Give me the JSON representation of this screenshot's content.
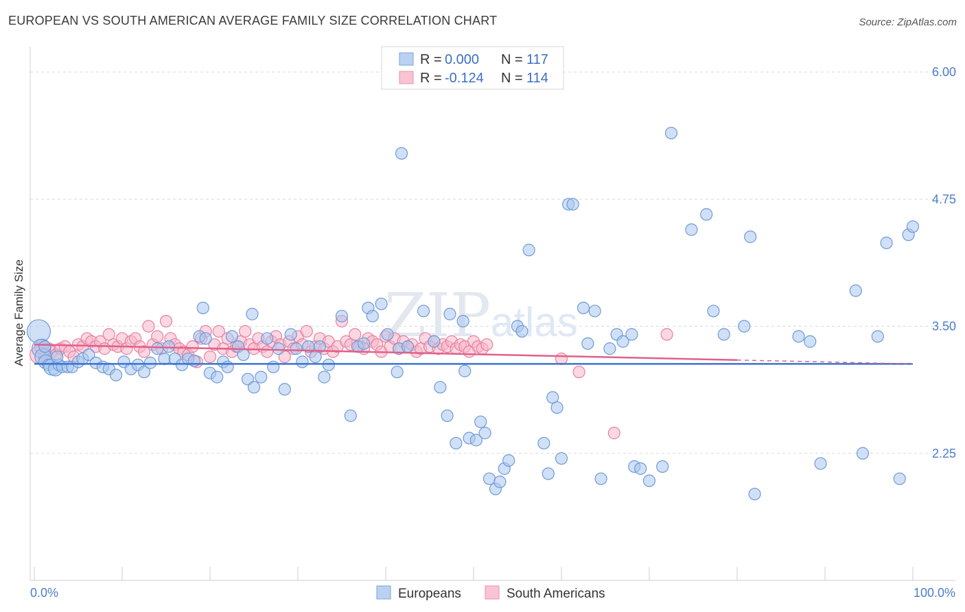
{
  "title": "EUROPEAN VS SOUTH AMERICAN AVERAGE FAMILY SIZE CORRELATION CHART",
  "source": "Source: ZipAtlas.com",
  "watermark": {
    "zip": "ZIP",
    "atlas": "atlas"
  },
  "legend": {
    "rows": [
      {
        "r_label": "R =",
        "r_value": "0.000",
        "n_label": "N =",
        "n_value": "117"
      },
      {
        "r_label": "R =",
        "r_value": "-0.124",
        "n_label": "N =",
        "n_value": "114"
      }
    ]
  },
  "bottom_legend": [
    "Europeans",
    "South Americans"
  ],
  "colors": {
    "blue_fill": "#a9c6ee",
    "blue_stroke": "#6e9ad8",
    "blue_line": "#3a74d0",
    "pink_fill": "#f5b6c8",
    "pink_stroke": "#e97fa0",
    "pink_line": "#e0608a",
    "tick_text": "#4a7ec9",
    "grid": "#d9d9d9"
  },
  "chart_data": {
    "type": "scatter",
    "xlabel": "",
    "ylabel": "Average Family Size",
    "xlim": [
      0,
      100
    ],
    "ylim": [
      1.0,
      6.25
    ],
    "x_tick_labels": [
      "0.0%",
      "100.0%"
    ],
    "y_ticks": [
      2.25,
      3.5,
      4.75,
      6.0
    ],
    "y_tick_labels": [
      "2.25",
      "3.50",
      "4.75",
      "6.00"
    ],
    "grid": true,
    "series": [
      {
        "name": "Europeans",
        "r": 0.0,
        "n": 117,
        "trend": {
          "x0": 0,
          "y0": 3.13,
          "x1": 100,
          "y1": 3.13
        },
        "points": [
          [
            0.5,
            3.45,
            2
          ],
          [
            0.8,
            3.28,
            1.6
          ],
          [
            1.0,
            3.2,
            1.4
          ],
          [
            1.3,
            3.15,
            1.2
          ],
          [
            1.6,
            3.12,
            1
          ],
          [
            2.0,
            3.1,
            1.4
          ],
          [
            2.4,
            3.08,
            1.2
          ],
          [
            2.8,
            3.12,
            1
          ],
          [
            3.2,
            3.1,
            1
          ],
          [
            3.8,
            3.1,
            1
          ],
          [
            4.3,
            3.1,
            1
          ],
          [
            5.0,
            3.15,
            1
          ],
          [
            5.5,
            3.18,
            1
          ],
          [
            6.2,
            3.22,
            1
          ],
          [
            7.0,
            3.14,
            1
          ],
          [
            7.8,
            3.1,
            1
          ],
          [
            8.5,
            3.08,
            1
          ],
          [
            9.3,
            3.02,
            1
          ],
          [
            10.2,
            3.15,
            1
          ],
          [
            11.0,
            3.08,
            1
          ],
          [
            11.8,
            3.12,
            1
          ],
          [
            12.5,
            3.05,
            1
          ],
          [
            13.2,
            3.14,
            1
          ],
          [
            14.0,
            3.28,
            1
          ],
          [
            14.8,
            3.18,
            1
          ],
          [
            15.3,
            3.3,
            1
          ],
          [
            16.0,
            3.18,
            1
          ],
          [
            16.8,
            3.12,
            1
          ],
          [
            17.5,
            3.18,
            1
          ],
          [
            18.2,
            3.16,
            1
          ],
          [
            18.8,
            3.4,
            1
          ],
          [
            19.5,
            3.38,
            1
          ],
          [
            19.2,
            3.68,
            1
          ],
          [
            20.0,
            3.04,
            1
          ],
          [
            20.8,
            3.0,
            1
          ],
          [
            21.5,
            3.15,
            1
          ],
          [
            22.0,
            3.1,
            1
          ],
          [
            22.5,
            3.4,
            1
          ],
          [
            23.2,
            3.3,
            1
          ],
          [
            23.8,
            3.22,
            1
          ],
          [
            24.3,
            2.98,
            1
          ],
          [
            25.0,
            2.9,
            1
          ],
          [
            24.8,
            3.62,
            1
          ],
          [
            25.8,
            3.0,
            1
          ],
          [
            26.5,
            3.38,
            1
          ],
          [
            27.2,
            3.1,
            1
          ],
          [
            27.8,
            3.28,
            1
          ],
          [
            28.5,
            2.88,
            1
          ],
          [
            29.2,
            3.42,
            1
          ],
          [
            29.8,
            3.28,
            1
          ],
          [
            30.5,
            3.15,
            1
          ],
          [
            31.2,
            3.3,
            1
          ],
          [
            32.0,
            3.2,
            1
          ],
          [
            32.5,
            3.3,
            1
          ],
          [
            33.0,
            3.0,
            1
          ],
          [
            33.5,
            3.12,
            1
          ],
          [
            35.0,
            3.6,
            1
          ],
          [
            36.0,
            2.62,
            1
          ],
          [
            36.8,
            3.3,
            1
          ],
          [
            37.5,
            3.33,
            1
          ],
          [
            38.0,
            3.68,
            1
          ],
          [
            38.5,
            3.6,
            1
          ],
          [
            39.5,
            3.72,
            1
          ],
          [
            40.2,
            3.42,
            1
          ],
          [
            41.3,
            3.05,
            1
          ],
          [
            41.5,
            3.28,
            1
          ],
          [
            41.8,
            5.2,
            1
          ],
          [
            42.5,
            3.3,
            1
          ],
          [
            44.3,
            3.65,
            1
          ],
          [
            45.5,
            3.35,
            1
          ],
          [
            46.2,
            2.9,
            1
          ],
          [
            47.0,
            2.62,
            1
          ],
          [
            47.3,
            3.62,
            1
          ],
          [
            48.0,
            2.35,
            1
          ],
          [
            48.8,
            3.55,
            1
          ],
          [
            49.0,
            3.06,
            1
          ],
          [
            49.5,
            2.4,
            1
          ],
          [
            50.3,
            2.38,
            1
          ],
          [
            50.8,
            2.56,
            1
          ],
          [
            51.3,
            2.45,
            1
          ],
          [
            51.8,
            2.0,
            1
          ],
          [
            52.5,
            1.9,
            1
          ],
          [
            53.0,
            1.97,
            1
          ],
          [
            53.5,
            2.1,
            1
          ],
          [
            54.0,
            2.18,
            1
          ],
          [
            55.0,
            3.5,
            1
          ],
          [
            55.5,
            3.45,
            1
          ],
          [
            56.3,
            4.25,
            1
          ],
          [
            58.0,
            2.35,
            1
          ],
          [
            58.5,
            2.05,
            1
          ],
          [
            59.0,
            2.8,
            1
          ],
          [
            59.5,
            2.7,
            1
          ],
          [
            60.0,
            2.2,
            1
          ],
          [
            60.8,
            4.7,
            1
          ],
          [
            61.3,
            4.7,
            1
          ],
          [
            62.5,
            3.68,
            1
          ],
          [
            63.0,
            3.33,
            1
          ],
          [
            63.8,
            3.65,
            1
          ],
          [
            64.5,
            2.0,
            1
          ],
          [
            65.5,
            3.28,
            1
          ],
          [
            66.3,
            3.42,
            1
          ],
          [
            67.0,
            3.35,
            1
          ],
          [
            68.0,
            3.42,
            1
          ],
          [
            68.3,
            2.12,
            1
          ],
          [
            69.0,
            2.1,
            1
          ],
          [
            70.0,
            1.98,
            1
          ],
          [
            71.5,
            2.12,
            1
          ],
          [
            72.5,
            5.4,
            1
          ],
          [
            74.8,
            4.45,
            1
          ],
          [
            76.5,
            4.6,
            1
          ],
          [
            77.3,
            3.65,
            1
          ],
          [
            78.5,
            3.42,
            1
          ],
          [
            80.8,
            3.5,
            1
          ],
          [
            81.5,
            4.38,
            1
          ],
          [
            82.0,
            1.85,
            1
          ],
          [
            87.0,
            3.4,
            1
          ],
          [
            88.3,
            3.35,
            1
          ],
          [
            89.5,
            2.15,
            1
          ],
          [
            93.5,
            3.85,
            1
          ],
          [
            94.3,
            2.25,
            1
          ],
          [
            96.0,
            3.4,
            1
          ],
          [
            97.0,
            4.32,
            1
          ],
          [
            98.5,
            2.0,
            1
          ],
          [
            99.5,
            4.4,
            1
          ],
          [
            100.0,
            4.48,
            1
          ],
          [
            1.2,
            3.3,
            1
          ],
          [
            2.6,
            3.2,
            1
          ]
        ]
      },
      {
        "name": "South Americans",
        "r": -0.124,
        "n": 114,
        "trend": {
          "x0": 0,
          "y0": 3.32,
          "x1": 100,
          "y1": 3.13
        },
        "points": [
          [
            0.5,
            3.22,
            1.5
          ],
          [
            0.9,
            3.3,
            1.3
          ],
          [
            1.2,
            3.2,
            1.1
          ],
          [
            1.6,
            3.28,
            1
          ],
          [
            2.0,
            3.25,
            1
          ],
          [
            2.5,
            3.22,
            1
          ],
          [
            3.0,
            3.28,
            1
          ],
          [
            3.5,
            3.3,
            1
          ],
          [
            4.0,
            3.25,
            1
          ],
          [
            4.5,
            3.2,
            1
          ],
          [
            5.0,
            3.32,
            1
          ],
          [
            5.5,
            3.3,
            1
          ],
          [
            6.0,
            3.38,
            1
          ],
          [
            6.5,
            3.35,
            1
          ],
          [
            7.0,
            3.3,
            1
          ],
          [
            7.5,
            3.35,
            1
          ],
          [
            8.0,
            3.28,
            1
          ],
          [
            8.5,
            3.42,
            1
          ],
          [
            9.0,
            3.32,
            1
          ],
          [
            9.5,
            3.3,
            1
          ],
          [
            10.0,
            3.38,
            1
          ],
          [
            10.5,
            3.28,
            1
          ],
          [
            11.0,
            3.35,
            1
          ],
          [
            11.5,
            3.38,
            1
          ],
          [
            12.0,
            3.3,
            1
          ],
          [
            12.5,
            3.25,
            1
          ],
          [
            13.0,
            3.5,
            1
          ],
          [
            13.5,
            3.32,
            1
          ],
          [
            14.0,
            3.4,
            1
          ],
          [
            14.5,
            3.28,
            1
          ],
          [
            15.0,
            3.55,
            1
          ],
          [
            15.5,
            3.38,
            1
          ],
          [
            16.0,
            3.32,
            1
          ],
          [
            16.5,
            3.28,
            1
          ],
          [
            17.0,
            3.25,
            1
          ],
          [
            17.5,
            3.22,
            1
          ],
          [
            18.0,
            3.3,
            1
          ],
          [
            18.5,
            3.15,
            1
          ],
          [
            19.0,
            3.38,
            1
          ],
          [
            19.5,
            3.45,
            1
          ],
          [
            20.0,
            3.2,
            1
          ],
          [
            20.5,
            3.32,
            1
          ],
          [
            21.0,
            3.45,
            1
          ],
          [
            21.5,
            3.28,
            1
          ],
          [
            22.0,
            3.38,
            1
          ],
          [
            22.5,
            3.25,
            1
          ],
          [
            23.0,
            3.3,
            1
          ],
          [
            23.5,
            3.35,
            1
          ],
          [
            24.0,
            3.45,
            1
          ],
          [
            24.5,
            3.32,
            1
          ],
          [
            25.0,
            3.28,
            1
          ],
          [
            25.5,
            3.38,
            1
          ],
          [
            26.0,
            3.3,
            1
          ],
          [
            26.5,
            3.25,
            1
          ],
          [
            27.0,
            3.35,
            1
          ],
          [
            27.5,
            3.4,
            1
          ],
          [
            28.0,
            3.32,
            1
          ],
          [
            28.5,
            3.2,
            1
          ],
          [
            29.0,
            3.35,
            1
          ],
          [
            29.5,
            3.28,
            1
          ],
          [
            30.0,
            3.4,
            1
          ],
          [
            30.5,
            3.32,
            1
          ],
          [
            31.0,
            3.45,
            1
          ],
          [
            31.5,
            3.25,
            1
          ],
          [
            32.0,
            3.3,
            1
          ],
          [
            32.5,
            3.38,
            1
          ],
          [
            33.0,
            3.28,
            1
          ],
          [
            33.5,
            3.35,
            1
          ],
          [
            34.0,
            3.25,
            1
          ],
          [
            34.5,
            3.3,
            1
          ],
          [
            35.0,
            3.55,
            1
          ],
          [
            35.5,
            3.35,
            1
          ],
          [
            36.0,
            3.32,
            1
          ],
          [
            36.5,
            3.42,
            1
          ],
          [
            37.0,
            3.3,
            1
          ],
          [
            37.5,
            3.28,
            1
          ],
          [
            38.0,
            3.38,
            1
          ],
          [
            38.5,
            3.35,
            1
          ],
          [
            39.0,
            3.32,
            1
          ],
          [
            39.5,
            3.25,
            1
          ],
          [
            40.0,
            3.4,
            1
          ],
          [
            40.5,
            3.3,
            1
          ],
          [
            41.0,
            3.38,
            1
          ],
          [
            41.5,
            3.28,
            1
          ],
          [
            42.0,
            3.35,
            1
          ],
          [
            42.5,
            3.3,
            1
          ],
          [
            43.0,
            3.32,
            1
          ],
          [
            43.5,
            3.25,
            1
          ],
          [
            44.0,
            3.28,
            1
          ],
          [
            44.5,
            3.38,
            1
          ],
          [
            45.0,
            3.3,
            1
          ],
          [
            45.5,
            3.35,
            1
          ],
          [
            46.0,
            3.28,
            1
          ],
          [
            46.5,
            3.32,
            1
          ],
          [
            47.0,
            3.3,
            1
          ],
          [
            47.5,
            3.35,
            1
          ],
          [
            48.0,
            3.28,
            1
          ],
          [
            48.5,
            3.32,
            1
          ],
          [
            49.0,
            3.3,
            1
          ],
          [
            49.5,
            3.25,
            1
          ],
          [
            50.0,
            3.35,
            1
          ],
          [
            50.5,
            3.3,
            1
          ],
          [
            51.0,
            3.28,
            1
          ],
          [
            51.5,
            3.32,
            1
          ],
          [
            60.0,
            3.18,
            1
          ],
          [
            62.0,
            3.05,
            1
          ],
          [
            66.0,
            2.45,
            1
          ],
          [
            72.0,
            3.42,
            1
          ]
        ]
      }
    ]
  }
}
